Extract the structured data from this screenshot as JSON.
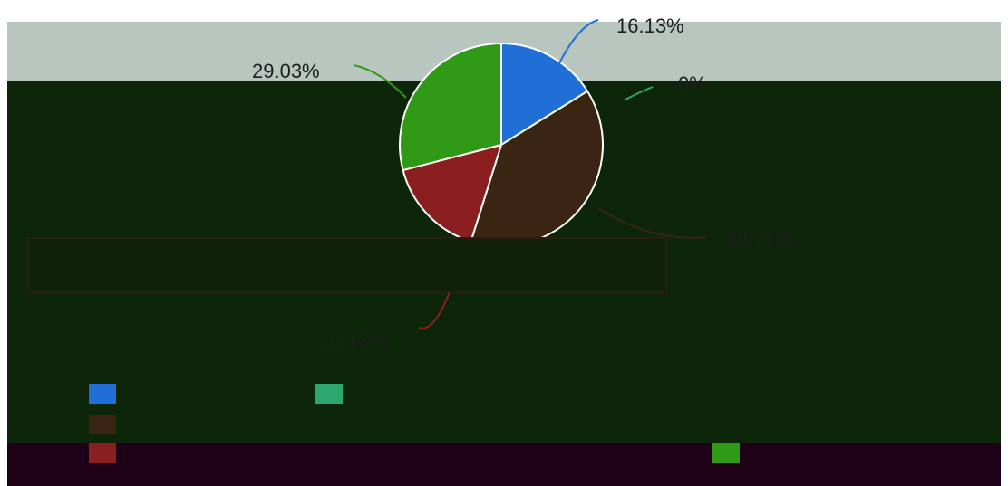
{
  "chart_data": {
    "type": "pie",
    "title": "",
    "slices": [
      {
        "label": "",
        "value": 16.13,
        "display": "16.13%",
        "color": "#1f6fd6"
      },
      {
        "label": "",
        "value": 0.0,
        "display": "0%",
        "color": "#2aa870"
      },
      {
        "label": "",
        "value": 38.71,
        "display": "38.71%",
        "color": "#3a2412"
      },
      {
        "label": "",
        "value": 16.13,
        "display": "16.13%",
        "color": "#8b1f1f"
      },
      {
        "label": "",
        "value": 29.03,
        "display": "29.03%",
        "color": "#2f9a15"
      }
    ],
    "legend_position": "bottom",
    "legend": [
      {
        "label": "",
        "color": "#1f6fd6"
      },
      {
        "label": "",
        "color": "#2aa870"
      },
      {
        "label": "",
        "color": "#3a2412"
      },
      {
        "label": "",
        "color": "#8b1f1f"
      },
      {
        "label": "",
        "color": "#2f9a15"
      }
    ]
  },
  "caption": {
    "text": ""
  }
}
